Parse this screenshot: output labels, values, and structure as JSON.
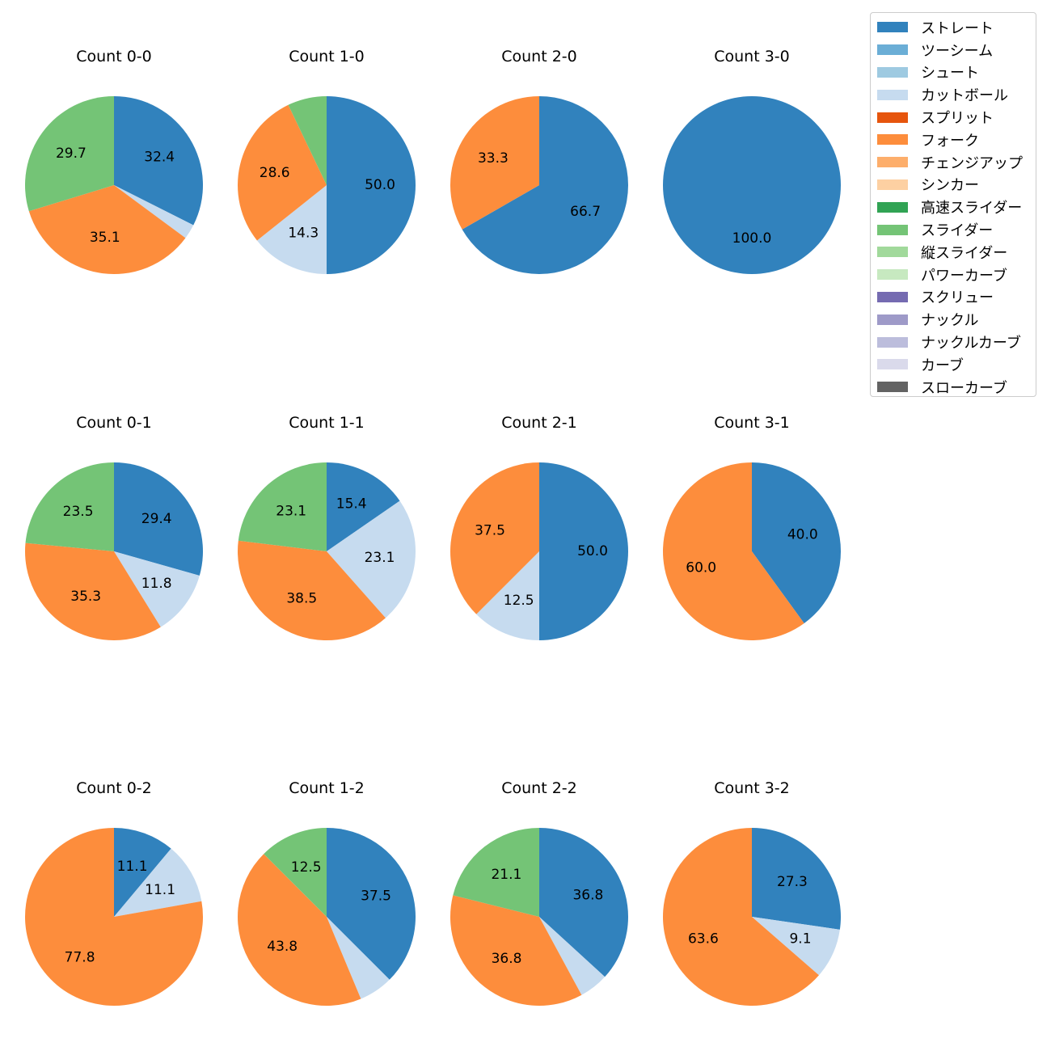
{
  "legend": {
    "items": [
      {
        "label": "ストレート",
        "color": "#3182bd"
      },
      {
        "label": "ツーシーム",
        "color": "#6baed6"
      },
      {
        "label": "シュート",
        "color": "#9ecae1"
      },
      {
        "label": "カットボール",
        "color": "#c6dbef"
      },
      {
        "label": "スプリット",
        "color": "#e6550d"
      },
      {
        "label": "フォーク",
        "color": "#fd8d3c"
      },
      {
        "label": "チェンジアップ",
        "color": "#fdae6b"
      },
      {
        "label": "シンカー",
        "color": "#fdd0a2"
      },
      {
        "label": "高速スライダー",
        "color": "#31a354"
      },
      {
        "label": "スライダー",
        "color": "#74c476"
      },
      {
        "label": "縦スライダー",
        "color": "#a1d99b"
      },
      {
        "label": "パワーカーブ",
        "color": "#c7e9c0"
      },
      {
        "label": "スクリュー",
        "color": "#756bb1"
      },
      {
        "label": "ナックル",
        "color": "#9e9ac8"
      },
      {
        "label": "ナックルカーブ",
        "color": "#bcbddc"
      },
      {
        "label": "カーブ",
        "color": "#dadaeb"
      },
      {
        "label": "スローカーブ",
        "color": "#636363"
      }
    ]
  },
  "chart_data": [
    {
      "type": "pie",
      "title": "Count 0-0",
      "slices": [
        {
          "category": "ストレート",
          "value": 32.4,
          "label": "32.4"
        },
        {
          "category": "カットボール",
          "value": 2.7,
          "label": ""
        },
        {
          "category": "フォーク",
          "value": 35.1,
          "label": "35.1"
        },
        {
          "category": "スライダー",
          "value": 29.7,
          "label": "29.7"
        }
      ]
    },
    {
      "type": "pie",
      "title": "Count 1-0",
      "slices": [
        {
          "category": "ストレート",
          "value": 50.0,
          "label": "50.0"
        },
        {
          "category": "カットボール",
          "value": 14.3,
          "label": "14.3"
        },
        {
          "category": "フォーク",
          "value": 28.6,
          "label": "28.6"
        },
        {
          "category": "スライダー",
          "value": 7.1,
          "label": ""
        }
      ]
    },
    {
      "type": "pie",
      "title": "Count 2-0",
      "slices": [
        {
          "category": "ストレート",
          "value": 66.7,
          "label": "66.7"
        },
        {
          "category": "フォーク",
          "value": 33.3,
          "label": "33.3"
        }
      ]
    },
    {
      "type": "pie",
      "title": "Count 3-0",
      "slices": [
        {
          "category": "ストレート",
          "value": 100.0,
          "label": "100.0"
        }
      ]
    },
    {
      "type": "pie",
      "title": "Count 0-1",
      "slices": [
        {
          "category": "ストレート",
          "value": 29.4,
          "label": "29.4"
        },
        {
          "category": "カットボール",
          "value": 11.8,
          "label": "11.8"
        },
        {
          "category": "フォーク",
          "value": 35.3,
          "label": "35.3"
        },
        {
          "category": "スライダー",
          "value": 23.5,
          "label": "23.5"
        }
      ]
    },
    {
      "type": "pie",
      "title": "Count 1-1",
      "slices": [
        {
          "category": "ストレート",
          "value": 15.4,
          "label": "15.4"
        },
        {
          "category": "カットボール",
          "value": 23.1,
          "label": "23.1"
        },
        {
          "category": "フォーク",
          "value": 38.5,
          "label": "38.5"
        },
        {
          "category": "スライダー",
          "value": 23.1,
          "label": "23.1"
        }
      ]
    },
    {
      "type": "pie",
      "title": "Count 2-1",
      "slices": [
        {
          "category": "ストレート",
          "value": 50.0,
          "label": "50.0"
        },
        {
          "category": "カットボール",
          "value": 12.5,
          "label": "12.5"
        },
        {
          "category": "フォーク",
          "value": 37.5,
          "label": "37.5"
        }
      ]
    },
    {
      "type": "pie",
      "title": "Count 3-1",
      "slices": [
        {
          "category": "ストレート",
          "value": 40.0,
          "label": "40.0"
        },
        {
          "category": "フォーク",
          "value": 60.0,
          "label": "60.0"
        }
      ]
    },
    {
      "type": "pie",
      "title": "Count 0-2",
      "slices": [
        {
          "category": "ストレート",
          "value": 11.1,
          "label": "11.1"
        },
        {
          "category": "カットボール",
          "value": 11.1,
          "label": "11.1"
        },
        {
          "category": "フォーク",
          "value": 77.8,
          "label": "77.8"
        }
      ]
    },
    {
      "type": "pie",
      "title": "Count 1-2",
      "slices": [
        {
          "category": "ストレート",
          "value": 37.5,
          "label": "37.5"
        },
        {
          "category": "カットボール",
          "value": 6.2,
          "label": ""
        },
        {
          "category": "フォーク",
          "value": 43.8,
          "label": "43.8"
        },
        {
          "category": "スライダー",
          "value": 12.5,
          "label": "12.5"
        }
      ]
    },
    {
      "type": "pie",
      "title": "Count 2-2",
      "slices": [
        {
          "category": "ストレート",
          "value": 36.8,
          "label": "36.8"
        },
        {
          "category": "カットボール",
          "value": 5.3,
          "label": ""
        },
        {
          "category": "フォーク",
          "value": 36.8,
          "label": "36.8"
        },
        {
          "category": "スライダー",
          "value": 21.1,
          "label": "21.1"
        }
      ]
    },
    {
      "type": "pie",
      "title": "Count 3-2",
      "slices": [
        {
          "category": "ストレート",
          "value": 27.3,
          "label": "27.3"
        },
        {
          "category": "カットボール",
          "value": 9.1,
          "label": "9.1"
        },
        {
          "category": "フォーク",
          "value": 63.6,
          "label": "63.6"
        }
      ]
    }
  ]
}
